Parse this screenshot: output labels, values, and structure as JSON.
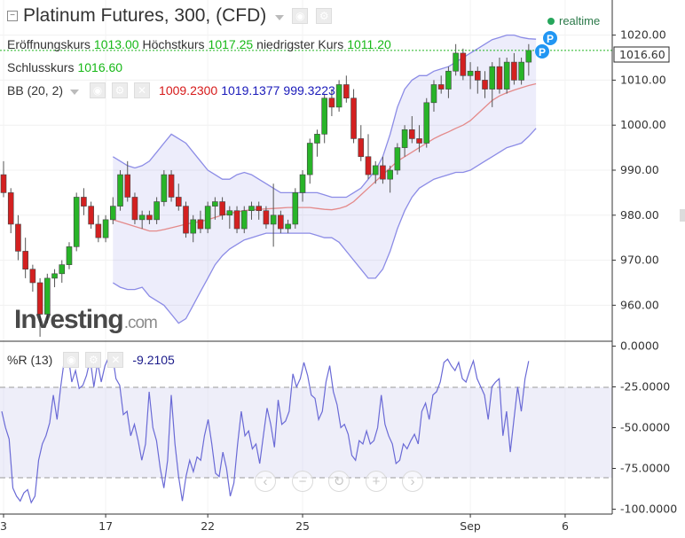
{
  "header": {
    "title": "Platinum Futures, 300, (CFD)",
    "realtime_label": "realtime"
  },
  "ohlc": {
    "open_label": "Eröffnungskurs",
    "open": "1013.00",
    "high_label": "Höchstkurs",
    "high": "1017.25",
    "low_label": "niedrigster Kurs",
    "low": "1011.20",
    "close_label": "Schlusskurs",
    "close": "1016.60"
  },
  "bb": {
    "label": "BB (20, 2)",
    "mid": "1009.2300",
    "upper": "1019.1377",
    "lower": "999.3223"
  },
  "wr": {
    "label": "%R (13)",
    "value": "-9.2105"
  },
  "watermark": {
    "brand": "Investing",
    "suffix": ".com"
  },
  "last_price_tag": "1016.60",
  "colors": {
    "up": "#28b428",
    "down": "#d32020",
    "bb_band": "#8c8ce6",
    "bb_mid": "#e07070",
    "wr_line": "#6a6ad6",
    "realtime": "#26a65b",
    "marker": "#2196f3"
  },
  "markers": [
    {
      "label": "P"
    },
    {
      "label": "P"
    }
  ],
  "nav_buttons": [
    {
      "name": "scroll-left-button",
      "glyph": "‹"
    },
    {
      "name": "zoom-out-button",
      "glyph": "−"
    },
    {
      "name": "reset-button",
      "glyph": "↻"
    },
    {
      "name": "zoom-in-button",
      "glyph": "+"
    },
    {
      "name": "scroll-right-button",
      "glyph": "›"
    }
  ],
  "chart_data": {
    "type": "candlestick",
    "price_axis": {
      "ticks": [
        "1020.00",
        "1010.00",
        "1000.00",
        "990.00",
        "980.00",
        "970.00",
        "960.00"
      ],
      "ylim": [
        952.0,
        1027.8
      ]
    },
    "wr_axis": {
      "ticks": [
        "0.0000",
        "-25.0000",
        "-50.0000",
        "-75.0000",
        "-100.0000"
      ],
      "ylim": [
        -103.0,
        3.0
      ],
      "band": [
        -20,
        -80
      ]
    },
    "x_ticks": [
      {
        "label": "3",
        "bar": 0
      },
      {
        "label": "17",
        "bar": 14
      },
      {
        "label": "22",
        "bar": 28
      },
      {
        "label": "25",
        "bar": 41
      },
      {
        "label": "Sep",
        "bar": 64
      },
      {
        "label": "6",
        "bar": 77
      }
    ],
    "candles": [
      [
        989,
        992,
        984,
        985
      ],
      [
        985,
        986,
        976,
        978
      ],
      [
        978,
        980,
        970,
        972
      ],
      [
        972,
        975,
        966,
        968
      ],
      [
        968,
        969,
        963,
        965
      ],
      [
        965,
        966,
        953,
        958
      ],
      [
        958,
        967,
        956,
        966
      ],
      [
        966,
        968,
        964,
        967
      ],
      [
        967,
        970,
        965,
        969
      ],
      [
        969,
        974,
        968,
        973
      ],
      [
        973,
        985,
        972,
        984
      ],
      [
        984,
        986,
        980,
        982
      ],
      [
        982,
        983,
        977,
        978
      ],
      [
        978,
        980,
        974,
        975
      ],
      [
        975,
        980,
        974,
        979
      ],
      [
        979,
        984,
        978,
        982
      ],
      [
        982,
        990,
        981,
        989
      ],
      [
        989,
        992,
        983,
        984
      ],
      [
        984,
        985,
        978,
        979
      ],
      [
        979,
        981,
        977,
        980
      ],
      [
        980,
        981,
        978,
        979
      ],
      [
        979,
        984,
        978,
        983
      ],
      [
        983,
        990,
        982,
        989
      ],
      [
        989,
        990,
        983,
        984
      ],
      [
        984,
        987,
        981,
        982
      ],
      [
        982,
        983,
        975,
        976
      ],
      [
        976,
        980,
        974,
        979
      ],
      [
        979,
        981,
        976,
        977
      ],
      [
        977,
        983,
        976,
        982
      ],
      [
        982,
        984,
        979,
        983
      ],
      [
        983,
        984,
        979,
        980
      ],
      [
        980,
        982,
        977,
        981
      ],
      [
        981,
        982,
        976,
        977
      ],
      [
        977,
        982,
        976,
        981
      ],
      [
        981,
        983,
        979,
        982
      ],
      [
        982,
        983,
        979,
        981
      ],
      [
        981,
        982,
        977,
        978
      ],
      [
        978,
        987,
        973,
        980
      ],
      [
        980,
        981,
        976,
        977
      ],
      [
        977,
        979,
        976,
        978
      ],
      [
        978,
        986,
        977,
        985
      ],
      [
        985,
        990,
        983,
        989
      ],
      [
        989,
        997,
        987,
        996
      ],
      [
        996,
        999,
        993,
        998
      ],
      [
        998,
        1007,
        996,
        1006
      ],
      [
        1006,
        1008,
        1002,
        1004
      ],
      [
        1004,
        1010,
        1003,
        1009
      ],
      [
        1009,
        1011,
        1005,
        1006
      ],
      [
        1006,
        1008,
        996,
        997
      ],
      [
        997,
        1000,
        992,
        993
      ],
      [
        993,
        998,
        988,
        989
      ],
      [
        989,
        992,
        987,
        991
      ],
      [
        991,
        993,
        987,
        988
      ],
      [
        988,
        991,
        985,
        990
      ],
      [
        990,
        996,
        989,
        995
      ],
      [
        995,
        1000,
        993,
        999
      ],
      [
        999,
        1002,
        996,
        997
      ],
      [
        997,
        1000,
        994,
        996
      ],
      [
        996,
        1006,
        995,
        1005
      ],
      [
        1005,
        1010,
        1003,
        1009
      ],
      [
        1009,
        1011,
        1007,
        1008
      ],
      [
        1008,
        1013,
        1006,
        1012
      ],
      [
        1012,
        1018,
        1011,
        1016
      ],
      [
        1016,
        1017,
        1010,
        1011
      ],
      [
        1011,
        1014,
        1008,
        1012
      ],
      [
        1012,
        1013,
        1007,
        1010
      ],
      [
        1010,
        1012,
        1006,
        1008
      ],
      [
        1008,
        1014,
        1004,
        1013
      ],
      [
        1013,
        1015,
        1007,
        1008
      ],
      [
        1008,
        1015,
        1007,
        1014
      ],
      [
        1014,
        1016,
        1009,
        1010
      ],
      [
        1010,
        1015,
        1009,
        1014
      ],
      [
        1014,
        1018,
        1011,
        1016.6
      ]
    ],
    "bb_upper": [
      993,
      992,
      991,
      990.5,
      991,
      992,
      994,
      996,
      998,
      997,
      996,
      994,
      992,
      990,
      989,
      988,
      988,
      989,
      989.5,
      989,
      988,
      987,
      986,
      985,
      985,
      985,
      985,
      985,
      985,
      984.5,
      984,
      984,
      984,
      985,
      986,
      988,
      990,
      993,
      998,
      1004,
      1008,
      1010,
      1011,
      1011,
      1012,
      1012.5,
      1013,
      1014,
      1015,
      1016,
      1017,
      1018,
      1019,
      1019.5,
      1020,
      1020,
      1019.5,
      1019.2,
      1019.1
    ],
    "bb_mid": [
      979,
      978.5,
      978,
      977.5,
      977,
      976.5,
      976.5,
      976.8,
      977.2,
      977.6,
      978,
      978.3,
      978.6,
      979,
      979.5,
      980,
      980.4,
      980.7,
      981,
      981.2,
      981.3,
      981.4,
      981.5,
      981.6,
      981.7,
      981.7,
      981.7,
      981.7,
      981.5,
      981.3,
      981.2,
      981.5,
      982,
      983,
      984.5,
      986,
      987.5,
      989,
      990.5,
      992,
      993,
      994,
      995,
      996,
      997,
      997.8,
      998.5,
      999.3,
      1000,
      1001,
      1002.5,
      1004,
      1005.5,
      1006.5,
      1007.2,
      1007.8,
      1008.3,
      1008.8,
      1009.2
    ],
    "bb_lower": [
      965,
      964,
      963.5,
      963.5,
      964,
      962,
      961,
      960,
      958,
      956,
      957,
      960,
      963,
      966,
      969,
      971,
      972.5,
      973.5,
      974.5,
      975,
      975.5,
      976,
      976,
      976,
      976,
      976,
      976,
      976,
      975.5,
      975,
      975,
      974,
      972,
      970,
      968,
      966,
      966,
      968,
      972,
      977,
      981,
      984,
      986,
      987,
      988,
      988.5,
      989,
      989.5,
      989.5,
      990,
      991,
      992,
      993,
      994,
      995,
      995.5,
      996,
      997.5,
      999.3
    ],
    "bb_start": 15,
    "wr": [
      -40,
      -50,
      -57,
      -87,
      -92,
      -95,
      -90,
      -88,
      -96,
      -92,
      -70,
      -60,
      -55,
      -47,
      -30,
      -45,
      -25,
      -8,
      -5,
      -22,
      -15,
      -26,
      -24,
      -18,
      -8,
      -25,
      -10,
      -22,
      -12,
      -7,
      -5,
      -20,
      -24,
      -42,
      -40,
      -55,
      -48,
      -58,
      -70,
      -60,
      -28,
      -50,
      -58,
      -75,
      -87,
      -70,
      -30,
      -60,
      -80,
      -95,
      -80,
      -70,
      -77,
      -68,
      -70,
      -55,
      -45,
      -60,
      -78,
      -80,
      -65,
      -75,
      -92,
      -84,
      -60,
      -40,
      -55,
      -52,
      -63,
      -60,
      -72,
      -55,
      -38,
      -48,
      -62,
      -33,
      -48,
      -46,
      -40,
      -17,
      -25,
      -20,
      -10,
      -18,
      -30,
      -32,
      -45,
      -40,
      -22,
      -12,
      -28,
      -36,
      -50,
      -48,
      -54,
      -67,
      -70,
      -58,
      -60,
      -52,
      -60,
      -58,
      -50,
      -30,
      -48,
      -55,
      -60,
      -72,
      -70,
      -60,
      -63,
      -58,
      -54,
      -60,
      -40,
      -35,
      -45,
      -30,
      -28,
      -22,
      -10,
      -8,
      -12,
      -15,
      -10,
      -20,
      -22,
      -15,
      -9,
      -20,
      -25,
      -30,
      -45,
      -25,
      -22,
      -20,
      -55,
      -40,
      -65,
      -45,
      -25,
      -40,
      -20,
      -9.2
    ]
  }
}
